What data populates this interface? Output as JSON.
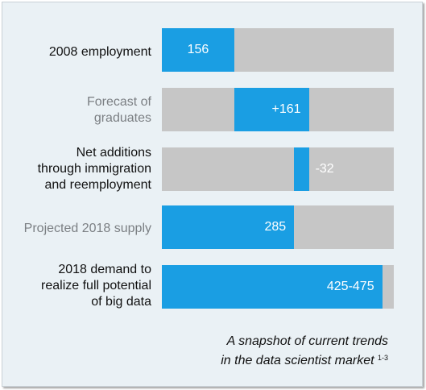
{
  "chart_data": {
    "type": "bar",
    "categories": [
      "2008 employment",
      "Forecast of graduates",
      "Net additions through immigration and reemployment",
      "Projected 2018 supply",
      "2018 demand to realize full potential of big data"
    ],
    "category_lines": [
      [
        "2008 employment"
      ],
      [
        "Forecast of",
        "graduates"
      ],
      [
        "Net additions",
        "through immigration",
        "and reemployment"
      ],
      [
        "Projected 2018 supply"
      ],
      [
        "2018 demand to",
        "realize full potential",
        "of big data"
      ]
    ],
    "values": [
      {
        "start": 0,
        "end": 156,
        "label": "156"
      },
      {
        "start": 156,
        "end": 317,
        "label": "+161"
      },
      {
        "start": 317,
        "end": 285,
        "label": "-32"
      },
      {
        "start": 0,
        "end": 285,
        "label": "285"
      },
      {
        "start": 0,
        "end": 475,
        "label": "425-475"
      }
    ],
    "xlim": [
      0,
      500
    ],
    "colors": {
      "bar": "#1a9ee3",
      "track": "#c6c6c6"
    }
  },
  "caption": {
    "line1": "A snapshot of current trends",
    "line2": "in the data scientist market",
    "superscript": "1-3"
  }
}
